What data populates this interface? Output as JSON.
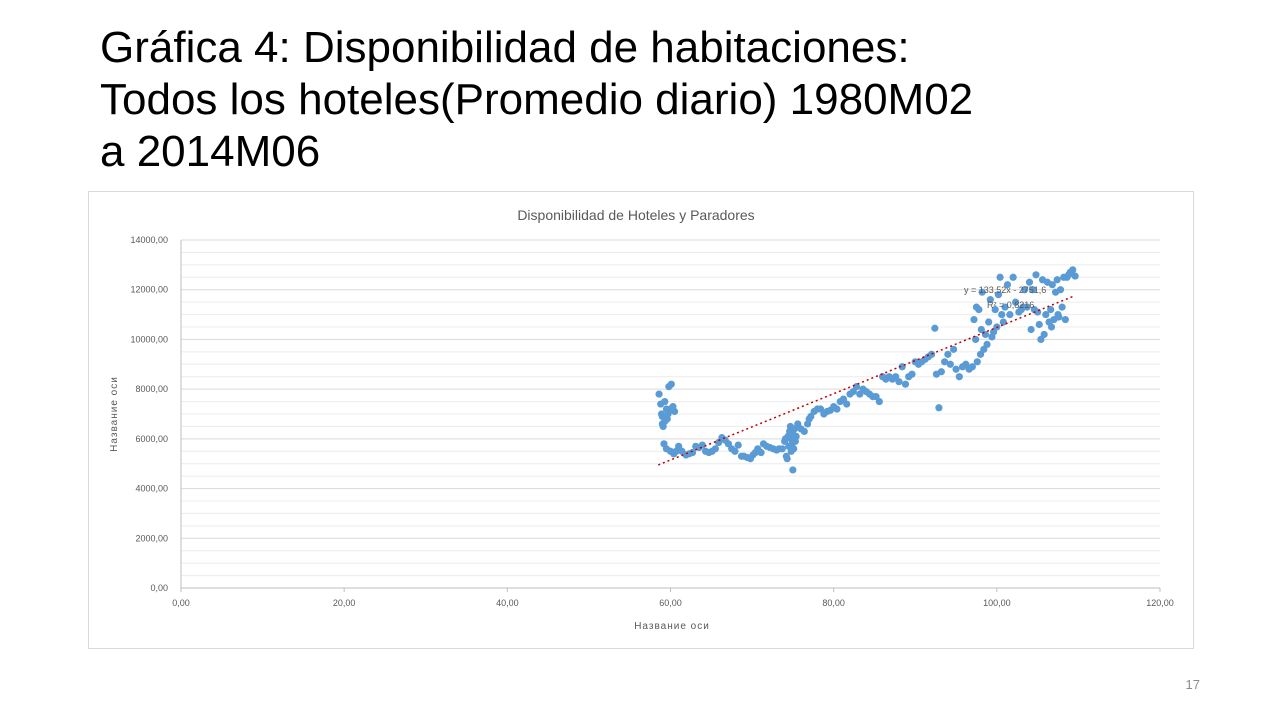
{
  "slide": {
    "title_lines": [
      "Gráfica 4: Disponibilidad de habitaciones:",
      "Todos los hoteles(Promedio diario) 1980M02",
      "a 2014M06"
    ],
    "page_number": "17"
  },
  "chart_data": {
    "type": "scatter",
    "title": "Disponibilidad de Hoteles y Paradores",
    "xlabel": "Название оси",
    "ylabel": "Название оси",
    "xlim": [
      0,
      120
    ],
    "ylim": [
      0,
      14000
    ],
    "x_ticks": [
      "0,00",
      "20,00",
      "40,00",
      "60,00",
      "80,00",
      "100,00",
      "120,00"
    ],
    "y_ticks": [
      "0,00",
      "2000,00",
      "4000,00",
      "6000,00",
      "8000,00",
      "10000,00",
      "12000,00",
      "14000,00"
    ],
    "grid": true,
    "legend": "none",
    "colors": {
      "points": "#5b9bd5",
      "trendline": "#c00000",
      "grid": "#d9d9d9",
      "text": "#595959"
    },
    "trendline": {
      "type": "linear",
      "x_range": [
        58.5,
        109.5
      ],
      "y_start": 4950,
      "y_end": 11750,
      "equation_label": "y = 133,52x - 2751,6",
      "r2_label": "R² = 0,8216"
    },
    "series": [
      {
        "points": [
          [
            58.6,
            7800
          ],
          [
            58.8,
            7400
          ],
          [
            59.0,
            6900
          ],
          [
            58.9,
            7000
          ],
          [
            59.3,
            6700
          ],
          [
            59.1,
            6500
          ],
          [
            59.5,
            7200
          ],
          [
            59.8,
            8100
          ],
          [
            60.1,
            8200
          ],
          [
            59.7,
            7000
          ],
          [
            60.3,
            7300
          ],
          [
            60.5,
            7100
          ],
          [
            60.0,
            7200
          ],
          [
            59.6,
            6800
          ],
          [
            59.0,
            6600
          ],
          [
            59.3,
            7500
          ],
          [
            59.2,
            5800
          ],
          [
            59.5,
            5600
          ],
          [
            60.0,
            5500
          ],
          [
            60.4,
            5400
          ],
          [
            60.7,
            5500
          ],
          [
            61.0,
            5700
          ],
          [
            61.4,
            5500
          ],
          [
            61.9,
            5350
          ],
          [
            62.3,
            5400
          ],
          [
            62.7,
            5450
          ],
          [
            63.1,
            5700
          ],
          [
            63.5,
            5650
          ],
          [
            63.9,
            5750
          ],
          [
            64.3,
            5500
          ],
          [
            64.7,
            5450
          ],
          [
            65.1,
            5500
          ],
          [
            65.5,
            5600
          ],
          [
            65.9,
            5850
          ],
          [
            66.3,
            6050
          ],
          [
            66.7,
            5950
          ],
          [
            67.1,
            5800
          ],
          [
            67.5,
            5600
          ],
          [
            67.9,
            5500
          ],
          [
            68.3,
            5750
          ],
          [
            68.7,
            5300
          ],
          [
            69.0,
            5300
          ],
          [
            69.4,
            5250
          ],
          [
            69.8,
            5200
          ],
          [
            70.1,
            5350
          ],
          [
            70.4,
            5450
          ],
          [
            70.7,
            5600
          ],
          [
            71.1,
            5450
          ],
          [
            71.4,
            5800
          ],
          [
            71.8,
            5700
          ],
          [
            72.2,
            5650
          ],
          [
            72.6,
            5600
          ],
          [
            73.0,
            5550
          ],
          [
            73.3,
            5600
          ],
          [
            73.7,
            5600
          ],
          [
            74.0,
            5900
          ],
          [
            74.1,
            6000
          ],
          [
            74.2,
            5300
          ],
          [
            74.3,
            5200
          ],
          [
            74.4,
            6100
          ],
          [
            74.5,
            5700
          ],
          [
            74.6,
            6300
          ],
          [
            74.7,
            6500
          ],
          [
            74.8,
            6000
          ],
          [
            74.9,
            5800
          ],
          [
            75.0,
            6200
          ],
          [
            75.1,
            5600
          ],
          [
            75.2,
            6400
          ],
          [
            75.3,
            5900
          ],
          [
            75.0,
            4750
          ],
          [
            74.8,
            5500
          ],
          [
            75.4,
            6100
          ],
          [
            75.6,
            6600
          ],
          [
            76.0,
            6400
          ],
          [
            76.4,
            6300
          ],
          [
            76.8,
            6600
          ],
          [
            77.0,
            6800
          ],
          [
            77.2,
            6900
          ],
          [
            77.6,
            7100
          ],
          [
            78.0,
            7200
          ],
          [
            78.4,
            7200
          ],
          [
            78.8,
            7000
          ],
          [
            79.2,
            7100
          ],
          [
            79.6,
            7150
          ],
          [
            80.0,
            7300
          ],
          [
            80.4,
            7200
          ],
          [
            80.8,
            7500
          ],
          [
            81.2,
            7600
          ],
          [
            81.6,
            7400
          ],
          [
            82.0,
            7800
          ],
          [
            82.4,
            7900
          ],
          [
            82.8,
            8100
          ],
          [
            83.2,
            7800
          ],
          [
            83.6,
            8000
          ],
          [
            84.0,
            7900
          ],
          [
            84.4,
            7800
          ],
          [
            84.8,
            7700
          ],
          [
            85.2,
            7700
          ],
          [
            85.6,
            7500
          ],
          [
            86.0,
            8500
          ],
          [
            86.4,
            8400
          ],
          [
            86.8,
            8500
          ],
          [
            87.2,
            8400
          ],
          [
            87.6,
            8500
          ],
          [
            88.0,
            8300
          ],
          [
            88.4,
            8900
          ],
          [
            88.8,
            8200
          ],
          [
            89.2,
            8500
          ],
          [
            89.6,
            8600
          ],
          [
            90.0,
            9100
          ],
          [
            90.4,
            9000
          ],
          [
            90.8,
            9100
          ],
          [
            91.2,
            9200
          ],
          [
            91.6,
            9300
          ],
          [
            92.0,
            9400
          ],
          [
            92.4,
            10450
          ],
          [
            92.6,
            8600
          ],
          [
            92.9,
            7250
          ],
          [
            93.2,
            8700
          ],
          [
            93.6,
            9100
          ],
          [
            94.0,
            9400
          ],
          [
            94.3,
            9000
          ],
          [
            94.7,
            9600
          ],
          [
            95.0,
            8800
          ],
          [
            95.4,
            8500
          ],
          [
            95.8,
            8900
          ],
          [
            96.2,
            9000
          ],
          [
            96.6,
            8800
          ],
          [
            97.0,
            8900
          ],
          [
            97.2,
            10800
          ],
          [
            97.4,
            10000
          ],
          [
            97.5,
            11300
          ],
          [
            97.6,
            9100
          ],
          [
            97.8,
            11200
          ],
          [
            98.0,
            9400
          ],
          [
            98.1,
            10400
          ],
          [
            98.2,
            11900
          ],
          [
            98.4,
            9600
          ],
          [
            98.6,
            10200
          ],
          [
            98.8,
            9800
          ],
          [
            99.0,
            10700
          ],
          [
            99.2,
            11600
          ],
          [
            99.4,
            10100
          ],
          [
            99.6,
            10300
          ],
          [
            99.8,
            11200
          ],
          [
            100.0,
            10500
          ],
          [
            100.2,
            11800
          ],
          [
            100.4,
            12500
          ],
          [
            100.6,
            11000
          ],
          [
            100.8,
            10700
          ],
          [
            101.0,
            11300
          ],
          [
            101.3,
            12200
          ],
          [
            101.6,
            11000
          ],
          [
            102.0,
            12500
          ],
          [
            102.3,
            11500
          ],
          [
            102.7,
            11100
          ],
          [
            103.0,
            11200
          ],
          [
            103.4,
            12000
          ],
          [
            103.7,
            11300
          ],
          [
            104.0,
            12300
          ],
          [
            104.2,
            10400
          ],
          [
            104.4,
            12000
          ],
          [
            104.6,
            11200
          ],
          [
            104.8,
            12600
          ],
          [
            105.0,
            11100
          ],
          [
            105.2,
            10600
          ],
          [
            105.4,
            10000
          ],
          [
            105.6,
            12400
          ],
          [
            105.8,
            10200
          ],
          [
            106.0,
            11000
          ],
          [
            106.2,
            12300
          ],
          [
            106.4,
            10700
          ],
          [
            106.6,
            11200
          ],
          [
            106.8,
            12200
          ],
          [
            107.0,
            10800
          ],
          [
            107.2,
            11900
          ],
          [
            107.4,
            12400
          ],
          [
            107.6,
            10900
          ],
          [
            107.8,
            12000
          ],
          [
            108.0,
            11300
          ],
          [
            108.2,
            12500
          ],
          [
            108.4,
            10800
          ],
          [
            108.6,
            12500
          ],
          [
            108.8,
            12600
          ],
          [
            109.0,
            12700
          ],
          [
            109.3,
            12800
          ],
          [
            109.6,
            12550
          ],
          [
            107.5,
            11000
          ],
          [
            106.7,
            10500
          ],
          [
            103.2,
            11300
          ]
        ]
      }
    ]
  }
}
